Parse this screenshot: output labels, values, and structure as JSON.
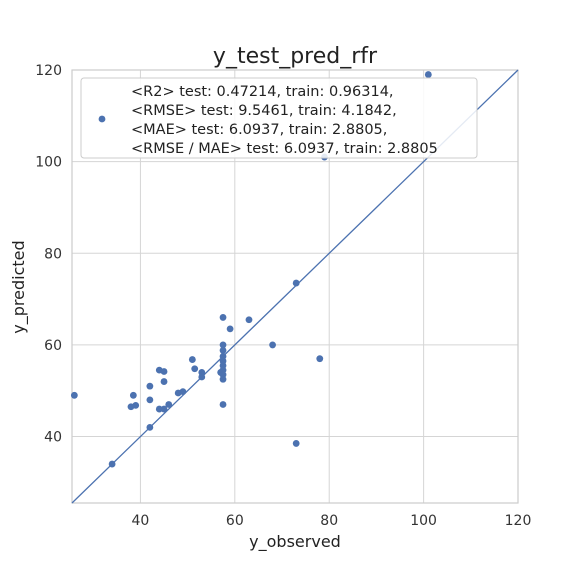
{
  "chart_data": {
    "type": "scatter",
    "title": "y_test_pred_rfr",
    "xlabel": "y_observed",
    "ylabel": "y_predicted",
    "xlim": [
      25.5,
      120
    ],
    "ylim": [
      25.5,
      120
    ],
    "xticks": [
      40,
      60,
      80,
      100,
      120
    ],
    "yticks": [
      40,
      60,
      80,
      100,
      120
    ],
    "grid": true,
    "legend_placement": "upper-left",
    "legend_lines": [
      "<R2> test: 0.47214, train: 0.96314,",
      "<RMSE> test: 9.5461, train: 4.1842,",
      "<MAE> test: 6.0937, train: 2.8805,",
      "<RMSE / MAE> test: 6.0937, train: 2.8805"
    ],
    "reference_line": [
      [
        25.5,
        25.5
      ],
      [
        120,
        120
      ]
    ],
    "colors": {
      "points": "#4c72b0",
      "line": "#4c72b0",
      "grid": "#d5d5d5",
      "frame": "#cccccc"
    },
    "points": [
      {
        "x": 26,
        "y": 49
      },
      {
        "x": 34,
        "y": 34
      },
      {
        "x": 38,
        "y": 46.5
      },
      {
        "x": 38.5,
        "y": 49
      },
      {
        "x": 39,
        "y": 46.8
      },
      {
        "x": 42,
        "y": 42
      },
      {
        "x": 42,
        "y": 48
      },
      {
        "x": 42,
        "y": 51
      },
      {
        "x": 44,
        "y": 54.5
      },
      {
        "x": 44,
        "y": 46
      },
      {
        "x": 45,
        "y": 54.2
      },
      {
        "x": 45,
        "y": 52
      },
      {
        "x": 45,
        "y": 46
      },
      {
        "x": 46,
        "y": 47
      },
      {
        "x": 48,
        "y": 49.5
      },
      {
        "x": 49,
        "y": 49.8
      },
      {
        "x": 51,
        "y": 56.8
      },
      {
        "x": 51.5,
        "y": 54.8
      },
      {
        "x": 53,
        "y": 54
      },
      {
        "x": 53,
        "y": 53
      },
      {
        "x": 57,
        "y": 54
      },
      {
        "x": 57.5,
        "y": 66
      },
      {
        "x": 57.5,
        "y": 60
      },
      {
        "x": 57.5,
        "y": 58.8
      },
      {
        "x": 57.5,
        "y": 57.5
      },
      {
        "x": 57.5,
        "y": 56.5
      },
      {
        "x": 57.5,
        "y": 55.5
      },
      {
        "x": 57.5,
        "y": 54.5
      },
      {
        "x": 57.5,
        "y": 53.5
      },
      {
        "x": 57.5,
        "y": 52.5
      },
      {
        "x": 57.5,
        "y": 47
      },
      {
        "x": 59,
        "y": 63.5
      },
      {
        "x": 63,
        "y": 65.5
      },
      {
        "x": 68,
        "y": 60
      },
      {
        "x": 73,
        "y": 73.5
      },
      {
        "x": 73,
        "y": 38.5
      },
      {
        "x": 78,
        "y": 57
      },
      {
        "x": 79,
        "y": 101
      },
      {
        "x": 101,
        "y": 119
      }
    ]
  }
}
